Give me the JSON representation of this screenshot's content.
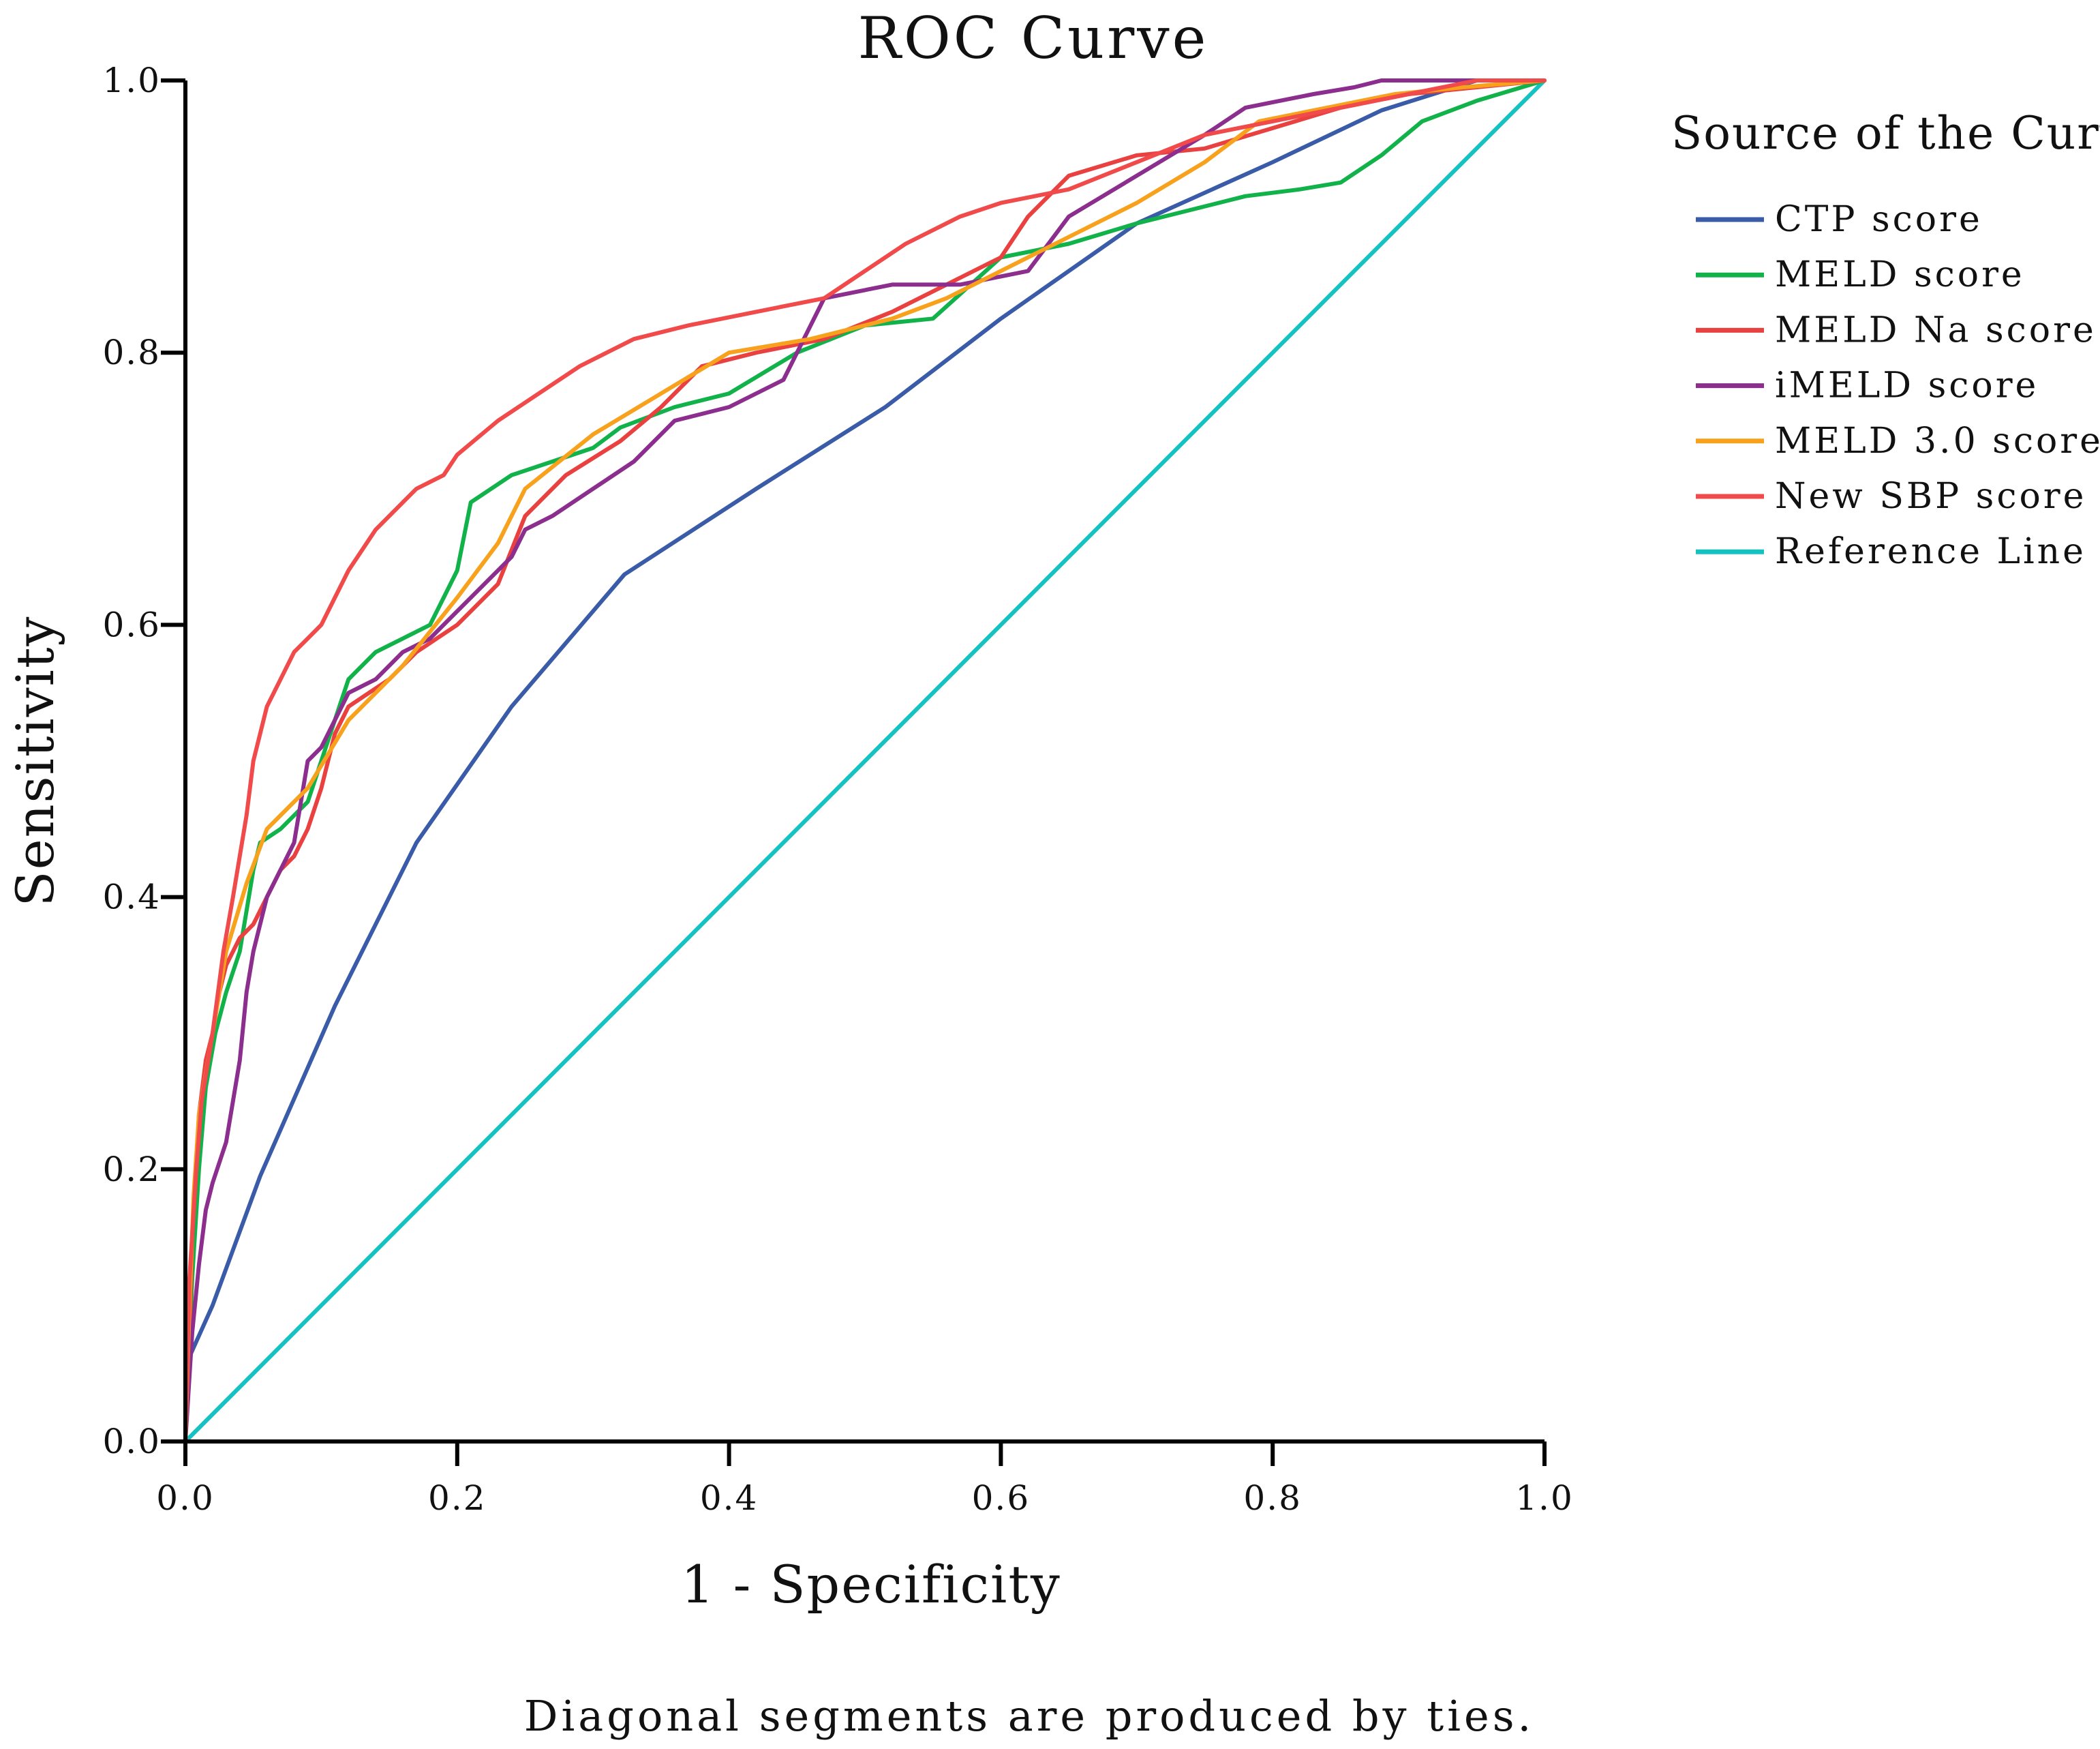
{
  "chart_data": {
    "type": "line",
    "title": "ROC Curve",
    "xlabel": "1 - Specificity",
    "ylabel": "Sensitivity",
    "xlim": [
      0,
      1
    ],
    "ylim": [
      0,
      1
    ],
    "grid": false,
    "x_ticks": [
      "0.0",
      "0.2",
      "0.4",
      "0.6",
      "0.8",
      "1.0"
    ],
    "y_ticks": [
      "0.0",
      "0.2",
      "0.4",
      "0.6",
      "0.8",
      "1.0"
    ],
    "legend_title": "Source of the Curve",
    "legend_position": "right",
    "footnote": "Diagonal segments are produced by ties.",
    "series": [
      {
        "name": "CTP score",
        "color": "#3A5BA8",
        "points": [
          [
            0,
            0
          ],
          [
            0.002,
            0.06
          ],
          [
            0.02,
            0.1
          ],
          [
            0.055,
            0.195
          ],
          [
            0.11,
            0.32
          ],
          [
            0.17,
            0.44
          ],
          [
            0.24,
            0.54
          ],
          [
            0.323,
            0.637
          ],
          [
            0.42,
            0.7
          ],
          [
            0.515,
            0.76
          ],
          [
            0.6,
            0.825
          ],
          [
            0.7,
            0.895
          ],
          [
            0.8,
            0.94
          ],
          [
            0.88,
            0.978
          ],
          [
            0.95,
            1.0
          ],
          [
            1.0,
            1.0
          ]
        ]
      },
      {
        "name": "MELD score",
        "color": "#12B24B",
        "points": [
          [
            0,
            0
          ],
          [
            0.005,
            0.12
          ],
          [
            0.01,
            0.2
          ],
          [
            0.015,
            0.26
          ],
          [
            0.022,
            0.3
          ],
          [
            0.03,
            0.33
          ],
          [
            0.04,
            0.36
          ],
          [
            0.05,
            0.42
          ],
          [
            0.055,
            0.44
          ],
          [
            0.07,
            0.45
          ],
          [
            0.09,
            0.47
          ],
          [
            0.1,
            0.5
          ],
          [
            0.11,
            0.53
          ],
          [
            0.12,
            0.56
          ],
          [
            0.14,
            0.58
          ],
          [
            0.16,
            0.59
          ],
          [
            0.18,
            0.6
          ],
          [
            0.19,
            0.62
          ],
          [
            0.2,
            0.64
          ],
          [
            0.21,
            0.69
          ],
          [
            0.24,
            0.71
          ],
          [
            0.27,
            0.72
          ],
          [
            0.3,
            0.73
          ],
          [
            0.32,
            0.745
          ],
          [
            0.36,
            0.76
          ],
          [
            0.4,
            0.77
          ],
          [
            0.45,
            0.8
          ],
          [
            0.5,
            0.82
          ],
          [
            0.55,
            0.825
          ],
          [
            0.6,
            0.87
          ],
          [
            0.65,
            0.88
          ],
          [
            0.7,
            0.895
          ],
          [
            0.78,
            0.915
          ],
          [
            0.82,
            0.92
          ],
          [
            0.85,
            0.925
          ],
          [
            0.88,
            0.945
          ],
          [
            0.91,
            0.97
          ],
          [
            0.95,
            0.985
          ],
          [
            1.0,
            1.0
          ]
        ]
      },
      {
        "name": "MELD Na score",
        "color": "#E94040",
        "points": [
          [
            0,
            0
          ],
          [
            0.003,
            0.08
          ],
          [
            0.005,
            0.15
          ],
          [
            0.008,
            0.2
          ],
          [
            0.01,
            0.24
          ],
          [
            0.015,
            0.28
          ],
          [
            0.02,
            0.3
          ],
          [
            0.025,
            0.33
          ],
          [
            0.03,
            0.35
          ],
          [
            0.04,
            0.37
          ],
          [
            0.05,
            0.38
          ],
          [
            0.06,
            0.4
          ],
          [
            0.07,
            0.42
          ],
          [
            0.08,
            0.43
          ],
          [
            0.09,
            0.45
          ],
          [
            0.1,
            0.48
          ],
          [
            0.11,
            0.52
          ],
          [
            0.12,
            0.54
          ],
          [
            0.15,
            0.56
          ],
          [
            0.17,
            0.58
          ],
          [
            0.2,
            0.6
          ],
          [
            0.23,
            0.63
          ],
          [
            0.25,
            0.68
          ],
          [
            0.28,
            0.71
          ],
          [
            0.32,
            0.735
          ],
          [
            0.35,
            0.76
          ],
          [
            0.38,
            0.79
          ],
          [
            0.42,
            0.8
          ],
          [
            0.47,
            0.81
          ],
          [
            0.52,
            0.83
          ],
          [
            0.56,
            0.85
          ],
          [
            0.6,
            0.87
          ],
          [
            0.62,
            0.9
          ],
          [
            0.65,
            0.93
          ],
          [
            0.7,
            0.945
          ],
          [
            0.75,
            0.95
          ],
          [
            0.8,
            0.965
          ],
          [
            0.85,
            0.98
          ],
          [
            0.9,
            0.99
          ],
          [
            0.95,
            0.995
          ],
          [
            1.0,
            1.0
          ]
        ]
      },
      {
        "name": "iMELD score",
        "color": "#8B2E8E",
        "points": [
          [
            0,
            0
          ],
          [
            0.005,
            0.08
          ],
          [
            0.01,
            0.13
          ],
          [
            0.015,
            0.17
          ],
          [
            0.02,
            0.19
          ],
          [
            0.03,
            0.22
          ],
          [
            0.04,
            0.28
          ],
          [
            0.045,
            0.33
          ],
          [
            0.05,
            0.36
          ],
          [
            0.06,
            0.4
          ],
          [
            0.07,
            0.42
          ],
          [
            0.08,
            0.44
          ],
          [
            0.09,
            0.5
          ],
          [
            0.1,
            0.51
          ],
          [
            0.11,
            0.53
          ],
          [
            0.12,
            0.55
          ],
          [
            0.14,
            0.56
          ],
          [
            0.16,
            0.58
          ],
          [
            0.18,
            0.59
          ],
          [
            0.2,
            0.61
          ],
          [
            0.22,
            0.63
          ],
          [
            0.24,
            0.65
          ],
          [
            0.25,
            0.67
          ],
          [
            0.27,
            0.68
          ],
          [
            0.3,
            0.7
          ],
          [
            0.33,
            0.72
          ],
          [
            0.36,
            0.75
          ],
          [
            0.4,
            0.76
          ],
          [
            0.44,
            0.78
          ],
          [
            0.47,
            0.84
          ],
          [
            0.52,
            0.85
          ],
          [
            0.57,
            0.85
          ],
          [
            0.62,
            0.86
          ],
          [
            0.65,
            0.9
          ],
          [
            0.7,
            0.93
          ],
          [
            0.75,
            0.96
          ],
          [
            0.78,
            0.98
          ],
          [
            0.83,
            0.99
          ],
          [
            0.86,
            0.995
          ],
          [
            0.88,
            1.0
          ],
          [
            1.0,
            1.0
          ]
        ]
      },
      {
        "name": "MELD 3.0 score",
        "color": "#F8A11D",
        "points": [
          [
            0,
            0
          ],
          [
            0.003,
            0.1
          ],
          [
            0.006,
            0.18
          ],
          [
            0.01,
            0.24
          ],
          [
            0.02,
            0.3
          ],
          [
            0.03,
            0.36
          ],
          [
            0.045,
            0.41
          ],
          [
            0.06,
            0.45
          ],
          [
            0.09,
            0.48
          ],
          [
            0.12,
            0.53
          ],
          [
            0.16,
            0.57
          ],
          [
            0.2,
            0.62
          ],
          [
            0.23,
            0.66
          ],
          [
            0.25,
            0.7
          ],
          [
            0.3,
            0.74
          ],
          [
            0.35,
            0.77
          ],
          [
            0.4,
            0.8
          ],
          [
            0.46,
            0.81
          ],
          [
            0.52,
            0.825
          ],
          [
            0.56,
            0.84
          ],
          [
            0.6,
            0.86
          ],
          [
            0.65,
            0.885
          ],
          [
            0.7,
            0.91
          ],
          [
            0.75,
            0.94
          ],
          [
            0.79,
            0.97
          ],
          [
            0.84,
            0.98
          ],
          [
            0.89,
            0.99
          ],
          [
            0.94,
            0.995
          ],
          [
            1.0,
            1.0
          ]
        ]
      },
      {
        "name": "New SBP score",
        "color": "#F04A4A",
        "points": [
          [
            0,
            0
          ],
          [
            0.003,
            0.12
          ],
          [
            0.008,
            0.2
          ],
          [
            0.012,
            0.25
          ],
          [
            0.02,
            0.3
          ],
          [
            0.028,
            0.36
          ],
          [
            0.035,
            0.4
          ],
          [
            0.045,
            0.46
          ],
          [
            0.05,
            0.5
          ],
          [
            0.06,
            0.54
          ],
          [
            0.07,
            0.56
          ],
          [
            0.08,
            0.58
          ],
          [
            0.09,
            0.59
          ],
          [
            0.1,
            0.6
          ],
          [
            0.11,
            0.62
          ],
          [
            0.12,
            0.64
          ],
          [
            0.14,
            0.67
          ],
          [
            0.16,
            0.69
          ],
          [
            0.17,
            0.7
          ],
          [
            0.19,
            0.71
          ],
          [
            0.2,
            0.725
          ],
          [
            0.23,
            0.75
          ],
          [
            0.26,
            0.77
          ],
          [
            0.29,
            0.79
          ],
          [
            0.31,
            0.8
          ],
          [
            0.33,
            0.81
          ],
          [
            0.37,
            0.82
          ],
          [
            0.42,
            0.83
          ],
          [
            0.47,
            0.84
          ],
          [
            0.5,
            0.86
          ],
          [
            0.53,
            0.88
          ],
          [
            0.57,
            0.9
          ],
          [
            0.6,
            0.91
          ],
          [
            0.65,
            0.92
          ],
          [
            0.7,
            0.94
          ],
          [
            0.75,
            0.96
          ],
          [
            0.8,
            0.97
          ],
          [
            0.85,
            0.98
          ],
          [
            0.9,
            0.99
          ],
          [
            0.95,
            1.0
          ],
          [
            1.0,
            1.0
          ]
        ]
      },
      {
        "name": "Reference Line",
        "color": "#15C2C2",
        "points": [
          [
            0,
            0
          ],
          [
            1,
            1
          ]
        ]
      }
    ]
  }
}
